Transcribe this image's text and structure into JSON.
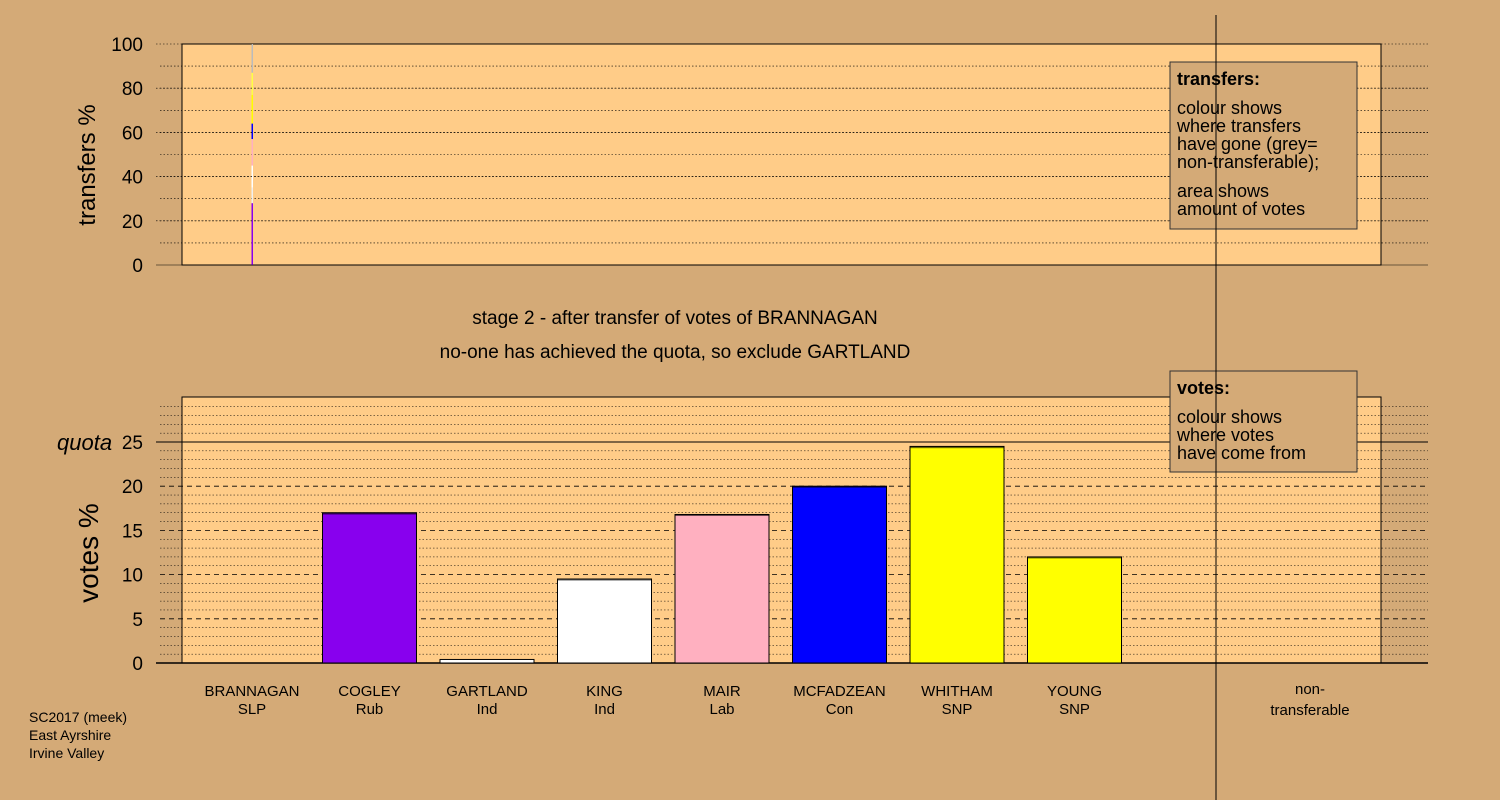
{
  "stage_title": "stage 2 - after transfer of votes of BRANNAGAN",
  "stage_note": "no-one has achieved the quota, so exclude GARTLAND",
  "footer": {
    "line1": "SC2017 (meek)",
    "line2": "East Ayrshire",
    "line3": "Irvine Valley"
  },
  "colors": {
    "background": "#d4aa77",
    "plot_panel": "#ffcc88"
  },
  "chart_data": [
    {
      "type": "bar",
      "name": "transfers",
      "ylabel": "transfers %",
      "ylim": [
        0,
        100
      ],
      "ytick_labels": [
        "0",
        "20",
        "40",
        "60",
        "80",
        "100"
      ],
      "grid": true,
      "legend": {
        "placement": "top-right",
        "heading": "transfers:",
        "lines_a": [
          "colour shows",
          "where transfers",
          "have gone (grey=",
          "non-transferable);"
        ],
        "lines_b": [
          "area shows",
          "amount of votes"
        ]
      },
      "transfer_source": "BRANNAGAN",
      "segments": [
        {
          "to": "COGLEY",
          "from_pct": 0,
          "to_pct": 28,
          "color": "#8800ee"
        },
        {
          "to": "GARTLAND",
          "from_pct": 28,
          "to_pct": 35,
          "color": "#f0f0f0"
        },
        {
          "to": "KING",
          "from_pct": 35,
          "to_pct": 45,
          "color": "#ffffff"
        },
        {
          "to": "MAIR",
          "from_pct": 45,
          "to_pct": 57,
          "color": "#ffb0c0"
        },
        {
          "to": "MCFADZEAN",
          "from_pct": 57,
          "to_pct": 64,
          "color": "#0000ff"
        },
        {
          "to": "WHITHAM",
          "from_pct": 64,
          "to_pct": 77,
          "color": "#ffff00"
        },
        {
          "to": "YOUNG",
          "from_pct": 77,
          "to_pct": 87,
          "color": "#ffff44"
        },
        {
          "to": "non-transferable",
          "from_pct": 87,
          "to_pct": 100,
          "color": "#bbbbbb"
        }
      ]
    },
    {
      "type": "bar",
      "name": "votes",
      "ylabel": "votes %",
      "ylim": [
        0,
        30
      ],
      "ytick_labels": [
        "0",
        "5",
        "10",
        "15",
        "20",
        "25"
      ],
      "quota": 25,
      "quota_label": "quota",
      "grid": true,
      "legend": {
        "placement": "top-right",
        "heading": "votes:",
        "lines": [
          "colour shows",
          "where votes",
          "have come from"
        ]
      },
      "categories": [
        {
          "name": "BRANNAGAN",
          "party": "SLP",
          "value": 0.0,
          "color": "#d4aa77"
        },
        {
          "name": "COGLEY",
          "party": "Rub",
          "value": 17.0,
          "color": "#8800ee",
          "transfer_top": 0.2
        },
        {
          "name": "GARTLAND",
          "party": "Ind",
          "value": 0.4,
          "color": "#ffffff"
        },
        {
          "name": "KING",
          "party": "Ind",
          "value": 9.5,
          "color": "#ffffff",
          "transfer_top": 0.1
        },
        {
          "name": "MAIR",
          "party": "Lab",
          "value": 16.8,
          "color": "#ffb0c0",
          "transfer_top": 0.1
        },
        {
          "name": "MCFADZEAN",
          "party": "Con",
          "value": 20.0,
          "color": "#0000ff",
          "transfer_top": 0.1
        },
        {
          "name": "WHITHAM",
          "party": "SNP",
          "value": 24.5,
          "color": "#ffff00",
          "transfer_top": 0.2
        },
        {
          "name": "YOUNG",
          "party": "SNP",
          "value": 12.0,
          "color": "#ffff00",
          "transfer_top": 0.1
        }
      ],
      "non_transferable": {
        "line1": "non-",
        "line2": "transferable",
        "value": 0.0
      }
    }
  ]
}
